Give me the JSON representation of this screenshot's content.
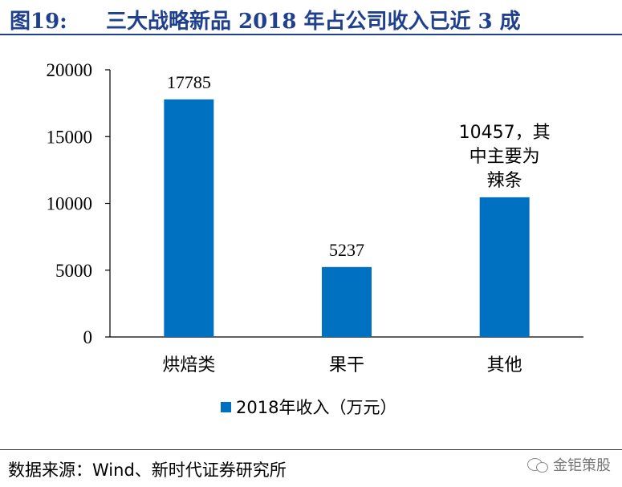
{
  "figure": {
    "label": "图19:",
    "title": "三大战略新品 2018 年占公司收入已近 3 成"
  },
  "chart_data": {
    "type": "bar",
    "categories": [
      "烘焙类",
      "果干",
      "其他"
    ],
    "series": [
      {
        "name": "2018年收入（万元）",
        "values": [
          17785,
          5237,
          10457
        ],
        "color": "#0070c0"
      }
    ],
    "data_labels": [
      "17785",
      "5237",
      "10457，其中主要为辣条"
    ],
    "data_label_lines": [
      [
        "17785"
      ],
      [
        "5237"
      ],
      [
        "10457，其",
        "中主要为",
        "辣条"
      ]
    ],
    "ylim": [
      0,
      20000
    ],
    "yticks": [
      0,
      5000,
      10000,
      15000,
      20000
    ],
    "xlabel": "",
    "ylabel": "",
    "grid": false,
    "legend": "bottom"
  },
  "source": "数据来源：Wind、新时代证券研究所",
  "watermark": "金钜策股"
}
